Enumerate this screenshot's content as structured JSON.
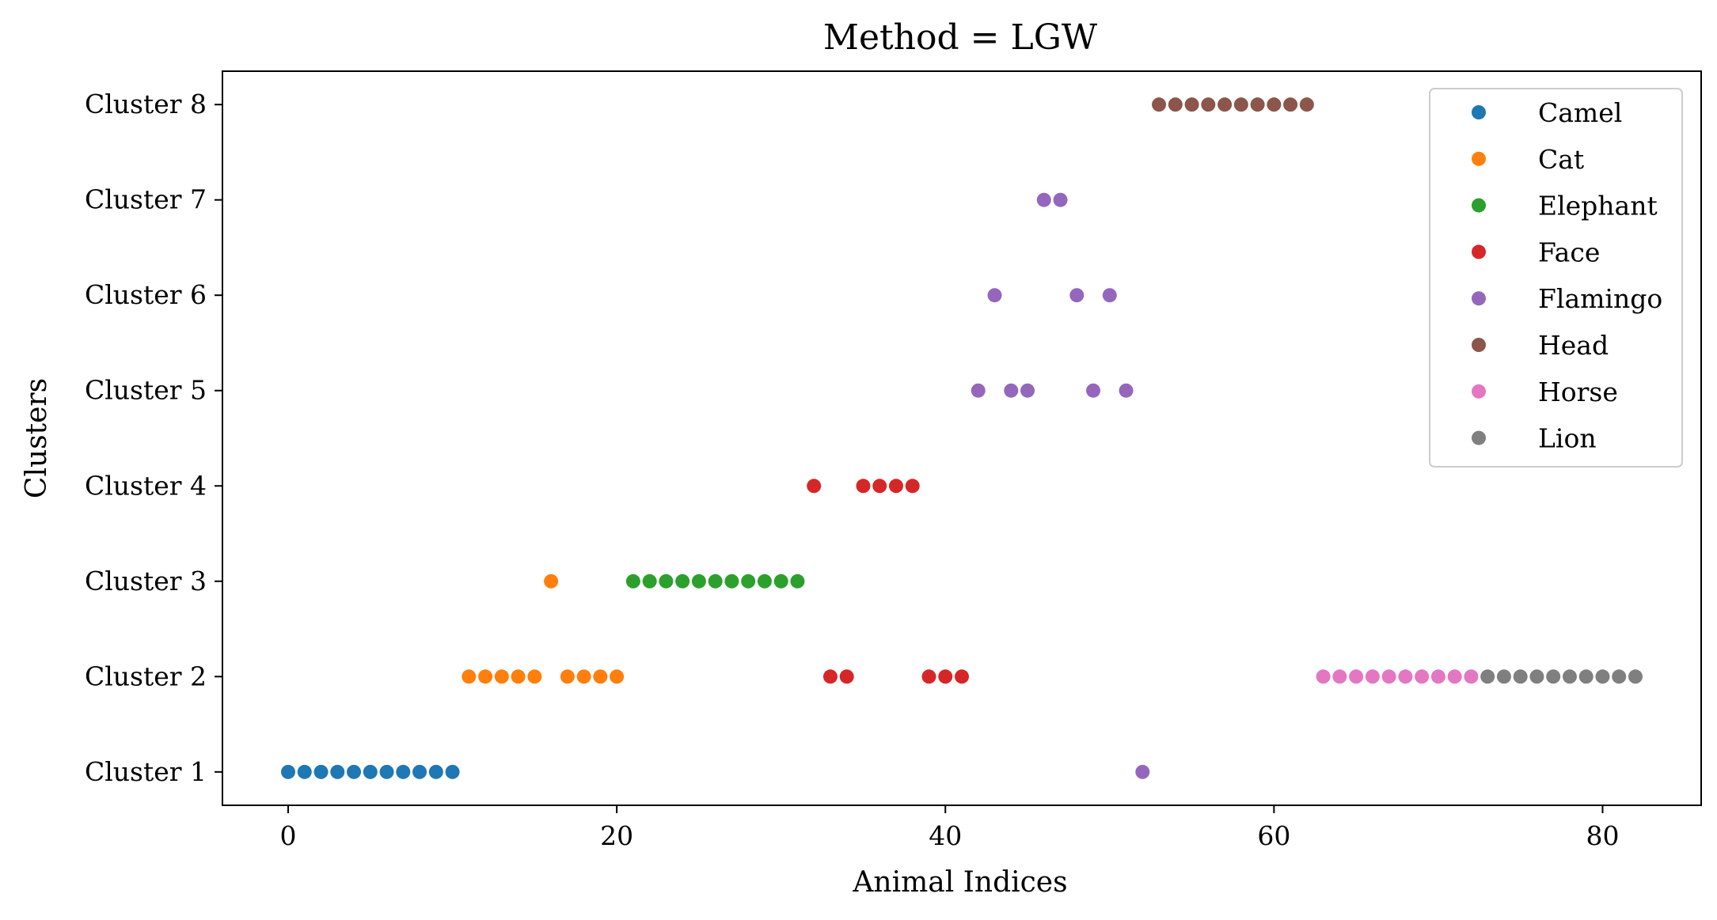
{
  "chart_data": {
    "type": "scatter",
    "title": "Method = LGW",
    "xlabel": "Animal Indices",
    "ylabel": "Clusters",
    "xlim": [
      -4,
      86
    ],
    "ylim": [
      0.65,
      8.35
    ],
    "xticks": [
      0,
      20,
      40,
      60,
      80
    ],
    "xtick_labels": [
      "0",
      "20",
      "40",
      "60",
      "80"
    ],
    "yticks": [
      1,
      2,
      3,
      4,
      5,
      6,
      7,
      8
    ],
    "ytick_labels": [
      "Cluster 1",
      "Cluster 2",
      "Cluster 3",
      "Cluster 4",
      "Cluster 5",
      "Cluster 6",
      "Cluster 7",
      "Cluster 8"
    ],
    "grid": false,
    "legend_position": "top-right",
    "series": [
      {
        "name": "Camel",
        "color": "#1f77b4",
        "points": [
          [
            0,
            1
          ],
          [
            1,
            1
          ],
          [
            2,
            1
          ],
          [
            3,
            1
          ],
          [
            4,
            1
          ],
          [
            5,
            1
          ],
          [
            6,
            1
          ],
          [
            7,
            1
          ],
          [
            8,
            1
          ],
          [
            9,
            1
          ],
          [
            10,
            1
          ]
        ]
      },
      {
        "name": "Cat",
        "color": "#ff7f0e",
        "points": [
          [
            11,
            2
          ],
          [
            12,
            2
          ],
          [
            13,
            2
          ],
          [
            14,
            2
          ],
          [
            15,
            2
          ],
          [
            16,
            3
          ],
          [
            17,
            2
          ],
          [
            18,
            2
          ],
          [
            19,
            2
          ],
          [
            20,
            2
          ]
        ]
      },
      {
        "name": "Elephant",
        "color": "#2ca02c",
        "points": [
          [
            21,
            3
          ],
          [
            22,
            3
          ],
          [
            23,
            3
          ],
          [
            24,
            3
          ],
          [
            25,
            3
          ],
          [
            26,
            3
          ],
          [
            27,
            3
          ],
          [
            28,
            3
          ],
          [
            29,
            3
          ],
          [
            30,
            3
          ],
          [
            31,
            3
          ]
        ]
      },
      {
        "name": "Face",
        "color": "#d62728",
        "points": [
          [
            32,
            4
          ],
          [
            33,
            2
          ],
          [
            34,
            2
          ],
          [
            35,
            4
          ],
          [
            36,
            4
          ],
          [
            37,
            4
          ],
          [
            38,
            4
          ],
          [
            39,
            2
          ],
          [
            40,
            2
          ],
          [
            41,
            2
          ]
        ]
      },
      {
        "name": "Flamingo",
        "color": "#9467bd",
        "points": [
          [
            42,
            5
          ],
          [
            43,
            6
          ],
          [
            44,
            5
          ],
          [
            45,
            5
          ],
          [
            46,
            7
          ],
          [
            47,
            7
          ],
          [
            48,
            6
          ],
          [
            49,
            5
          ],
          [
            50,
            6
          ],
          [
            51,
            5
          ],
          [
            52,
            1
          ]
        ]
      },
      {
        "name": "Head",
        "color": "#8c564b",
        "points": [
          [
            53,
            8
          ],
          [
            54,
            8
          ],
          [
            55,
            8
          ],
          [
            56,
            8
          ],
          [
            57,
            8
          ],
          [
            58,
            8
          ],
          [
            59,
            8
          ],
          [
            60,
            8
          ],
          [
            61,
            8
          ],
          [
            62,
            8
          ]
        ]
      },
      {
        "name": "Horse",
        "color": "#e377c2",
        "points": [
          [
            63,
            2
          ],
          [
            64,
            2
          ],
          [
            65,
            2
          ],
          [
            66,
            2
          ],
          [
            67,
            2
          ],
          [
            68,
            2
          ],
          [
            69,
            2
          ],
          [
            70,
            2
          ],
          [
            71,
            2
          ],
          [
            72,
            2
          ]
        ]
      },
      {
        "name": "Lion",
        "color": "#7f7f7f",
        "points": [
          [
            73,
            2
          ],
          [
            74,
            2
          ],
          [
            75,
            2
          ],
          [
            76,
            2
          ],
          [
            77,
            2
          ],
          [
            78,
            2
          ],
          [
            79,
            2
          ],
          [
            80,
            2
          ],
          [
            81,
            2
          ],
          [
            82,
            2
          ]
        ]
      }
    ]
  }
}
